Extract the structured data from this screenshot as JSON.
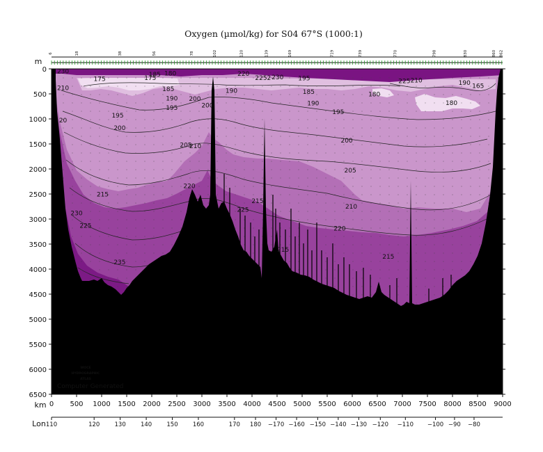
{
  "chart_data": {
    "type": "heatmap",
    "title": "Oxygen (µmol/kg) for S04 67°S (1000:1)",
    "y_axis": {
      "unit_label": "m",
      "range": [
        0,
        6500
      ],
      "ticks": [
        0,
        500,
        1000,
        1500,
        2000,
        2500,
        3000,
        3500,
        4000,
        4500,
        5000,
        5500,
        6000,
        6500
      ]
    },
    "x_axis": {
      "unit_label": "km",
      "range": [
        0,
        9000
      ],
      "ticks": [
        0,
        500,
        1000,
        1500,
        2000,
        2500,
        3000,
        3500,
        4000,
        4500,
        5000,
        5500,
        6000,
        6500,
        7000,
        7500,
        8000,
        8500,
        9000
      ]
    },
    "lon_axis": {
      "unit_label": "Lon",
      "ticks": [
        {
          "km": 0,
          "label": "110"
        },
        {
          "km": 850,
          "label": "120"
        },
        {
          "km": 1370,
          "label": "130"
        },
        {
          "km": 1890,
          "label": "140"
        },
        {
          "km": 2410,
          "label": "150"
        },
        {
          "km": 2930,
          "label": "160"
        },
        {
          "km": 3650,
          "label": "170"
        },
        {
          "km": 4070,
          "label": "180"
        },
        {
          "km": 4480,
          "label": "−170"
        },
        {
          "km": 4890,
          "label": "−160"
        },
        {
          "km": 5310,
          "label": "−150"
        },
        {
          "km": 5720,
          "label": "−140"
        },
        {
          "km": 6130,
          "label": "−130"
        },
        {
          "km": 6560,
          "label": "−120"
        },
        {
          "km": 7060,
          "label": "−110"
        },
        {
          "km": 7660,
          "label": "−100"
        },
        {
          "km": 8040,
          "label": "−90"
        },
        {
          "km": 8430,
          "label": "−80"
        }
      ]
    },
    "stations": [
      {
        "km": 0,
        "label": "6"
      },
      {
        "km": 530,
        "label": "18"
      },
      {
        "km": 1390,
        "label": "38"
      },
      {
        "km": 2070,
        "label": "56"
      },
      {
        "km": 2820,
        "label": "78"
      },
      {
        "km": 3280,
        "label": "102"
      },
      {
        "km": 3810,
        "label": "120"
      },
      {
        "km": 4310,
        "label": "139"
      },
      {
        "km": 4780,
        "label": "169"
      },
      {
        "km": 5620,
        "label": "719"
      },
      {
        "km": 6180,
        "label": "739"
      },
      {
        "km": 6880,
        "label": "770"
      },
      {
        "km": 7660,
        "label": "798"
      },
      {
        "km": 8280,
        "label": "830"
      },
      {
        "km": 8850,
        "label": "860"
      },
      {
        "km": 8990,
        "label": "862"
      }
    ],
    "contour_levels": [
      175,
      180,
      185,
      190,
      195,
      200,
      205,
      210,
      215,
      220,
      225,
      230,
      235
    ],
    "contour_labels": [
      {
        "km": 230,
        "depth": 50,
        "value": "230"
      },
      {
        "km": 230,
        "depth": 380,
        "value": "210"
      },
      {
        "km": 230,
        "depth": 1030,
        "value": "20"
      },
      {
        "km": 960,
        "depth": 200,
        "value": "175"
      },
      {
        "km": 1970,
        "depth": 180,
        "value": "175"
      },
      {
        "km": 2060,
        "depth": 110,
        "value": "185"
      },
      {
        "km": 2370,
        "depth": 90,
        "value": "180"
      },
      {
        "km": 2330,
        "depth": 400,
        "value": "185"
      },
      {
        "km": 2400,
        "depth": 590,
        "value": "190"
      },
      {
        "km": 2400,
        "depth": 780,
        "value": "195"
      },
      {
        "km": 2860,
        "depth": 600,
        "value": "200"
      },
      {
        "km": 3110,
        "depth": 730,
        "value": "200"
      },
      {
        "km": 1320,
        "depth": 930,
        "value": "195"
      },
      {
        "km": 1360,
        "depth": 1180,
        "value": "200"
      },
      {
        "km": 2680,
        "depth": 1520,
        "value": "205"
      },
      {
        "km": 2870,
        "depth": 1540,
        "value": "210"
      },
      {
        "km": 2750,
        "depth": 2340,
        "value": "220"
      },
      {
        "km": 1020,
        "depth": 2510,
        "value": "215"
      },
      {
        "km": 500,
        "depth": 2880,
        "value": "230"
      },
      {
        "km": 680,
        "depth": 3130,
        "value": "225"
      },
      {
        "km": 1360,
        "depth": 3860,
        "value": "235"
      },
      {
        "km": 3820,
        "depth": 2810,
        "value": "225"
      },
      {
        "km": 4110,
        "depth": 2640,
        "value": "215"
      },
      {
        "km": 4620,
        "depth": 3610,
        "value": "215"
      },
      {
        "km": 3590,
        "depth": 440,
        "value": "190"
      },
      {
        "km": 3830,
        "depth": 100,
        "value": "220"
      },
      {
        "km": 4220,
        "depth": 180,
        "value": "2252"
      },
      {
        "km": 4510,
        "depth": 170,
        "value": "230"
      },
      {
        "km": 5040,
        "depth": 190,
        "value": "195"
      },
      {
        "km": 5130,
        "depth": 460,
        "value": "185"
      },
      {
        "km": 5220,
        "depth": 690,
        "value": "190"
      },
      {
        "km": 5720,
        "depth": 860,
        "value": "195"
      },
      {
        "km": 5890,
        "depth": 1430,
        "value": "200"
      },
      {
        "km": 5960,
        "depth": 2030,
        "value": "205"
      },
      {
        "km": 5980,
        "depth": 2750,
        "value": "210"
      },
      {
        "km": 5750,
        "depth": 3190,
        "value": "220"
      },
      {
        "km": 6720,
        "depth": 3750,
        "value": "215"
      },
      {
        "km": 6440,
        "depth": 510,
        "value": "180"
      },
      {
        "km": 7040,
        "depth": 240,
        "value": "225"
      },
      {
        "km": 7280,
        "depth": 230,
        "value": "210"
      },
      {
        "km": 8240,
        "depth": 280,
        "value": "190"
      },
      {
        "km": 8510,
        "depth": 340,
        "value": "165"
      },
      {
        "km": 7980,
        "depth": 680,
        "value": "180"
      }
    ],
    "watermark": [
      "WOCE",
      "HYDROGRAPHIC",
      "ATLAS"
    ],
    "footer_text": "Computer Generated",
    "colors": {
      "bottom": "#000000",
      "band_175": "#f1dff1",
      "band_180": "#e0bfe0",
      "band_190": "#ca96cb",
      "band_205": "#b36fb6",
      "band_215": "#98429d",
      "band_230": "#7c1a85",
      "surface": "#7a1482"
    }
  }
}
